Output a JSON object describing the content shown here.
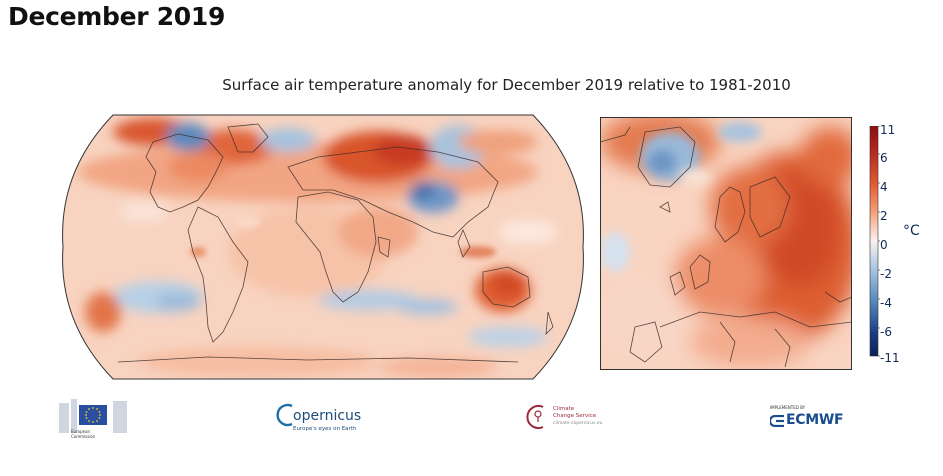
{
  "page_title": "December 2019",
  "map": {
    "title": "Surface air temperature anomaly for December 2019 relative to 1981-2010",
    "panels": [
      "World (Robinson projection)",
      "Europe"
    ],
    "colorbar": {
      "unit": "°C",
      "tick_labels": [
        "11",
        "6",
        "4",
        "2",
        "0",
        "-2",
        "-4",
        "-6",
        "-11"
      ],
      "min": -11,
      "max": 11,
      "colors": {
        "strong_warm": "#b2241e",
        "warm": "#e15a2f",
        "mild_warm": "#f4a47f",
        "neutral": "#fbf2ee",
        "mild_cool": "#a9c6e1",
        "cool": "#5b8ebf",
        "strong_cool": "#1a3e86"
      }
    }
  },
  "logos": {
    "european_commission": {
      "line1": "European",
      "line2": "Commission"
    },
    "copernicus": {
      "name": "opernicus",
      "initial": "C",
      "tagline": "Europe's eyes on Earth"
    },
    "c3s": {
      "line1": "Climate",
      "line2": "Change Service",
      "line3": "climate.copernicus.eu"
    },
    "ecmwf": {
      "pre": "IMPLEMENTED BY",
      "name": "ECMWF"
    }
  }
}
